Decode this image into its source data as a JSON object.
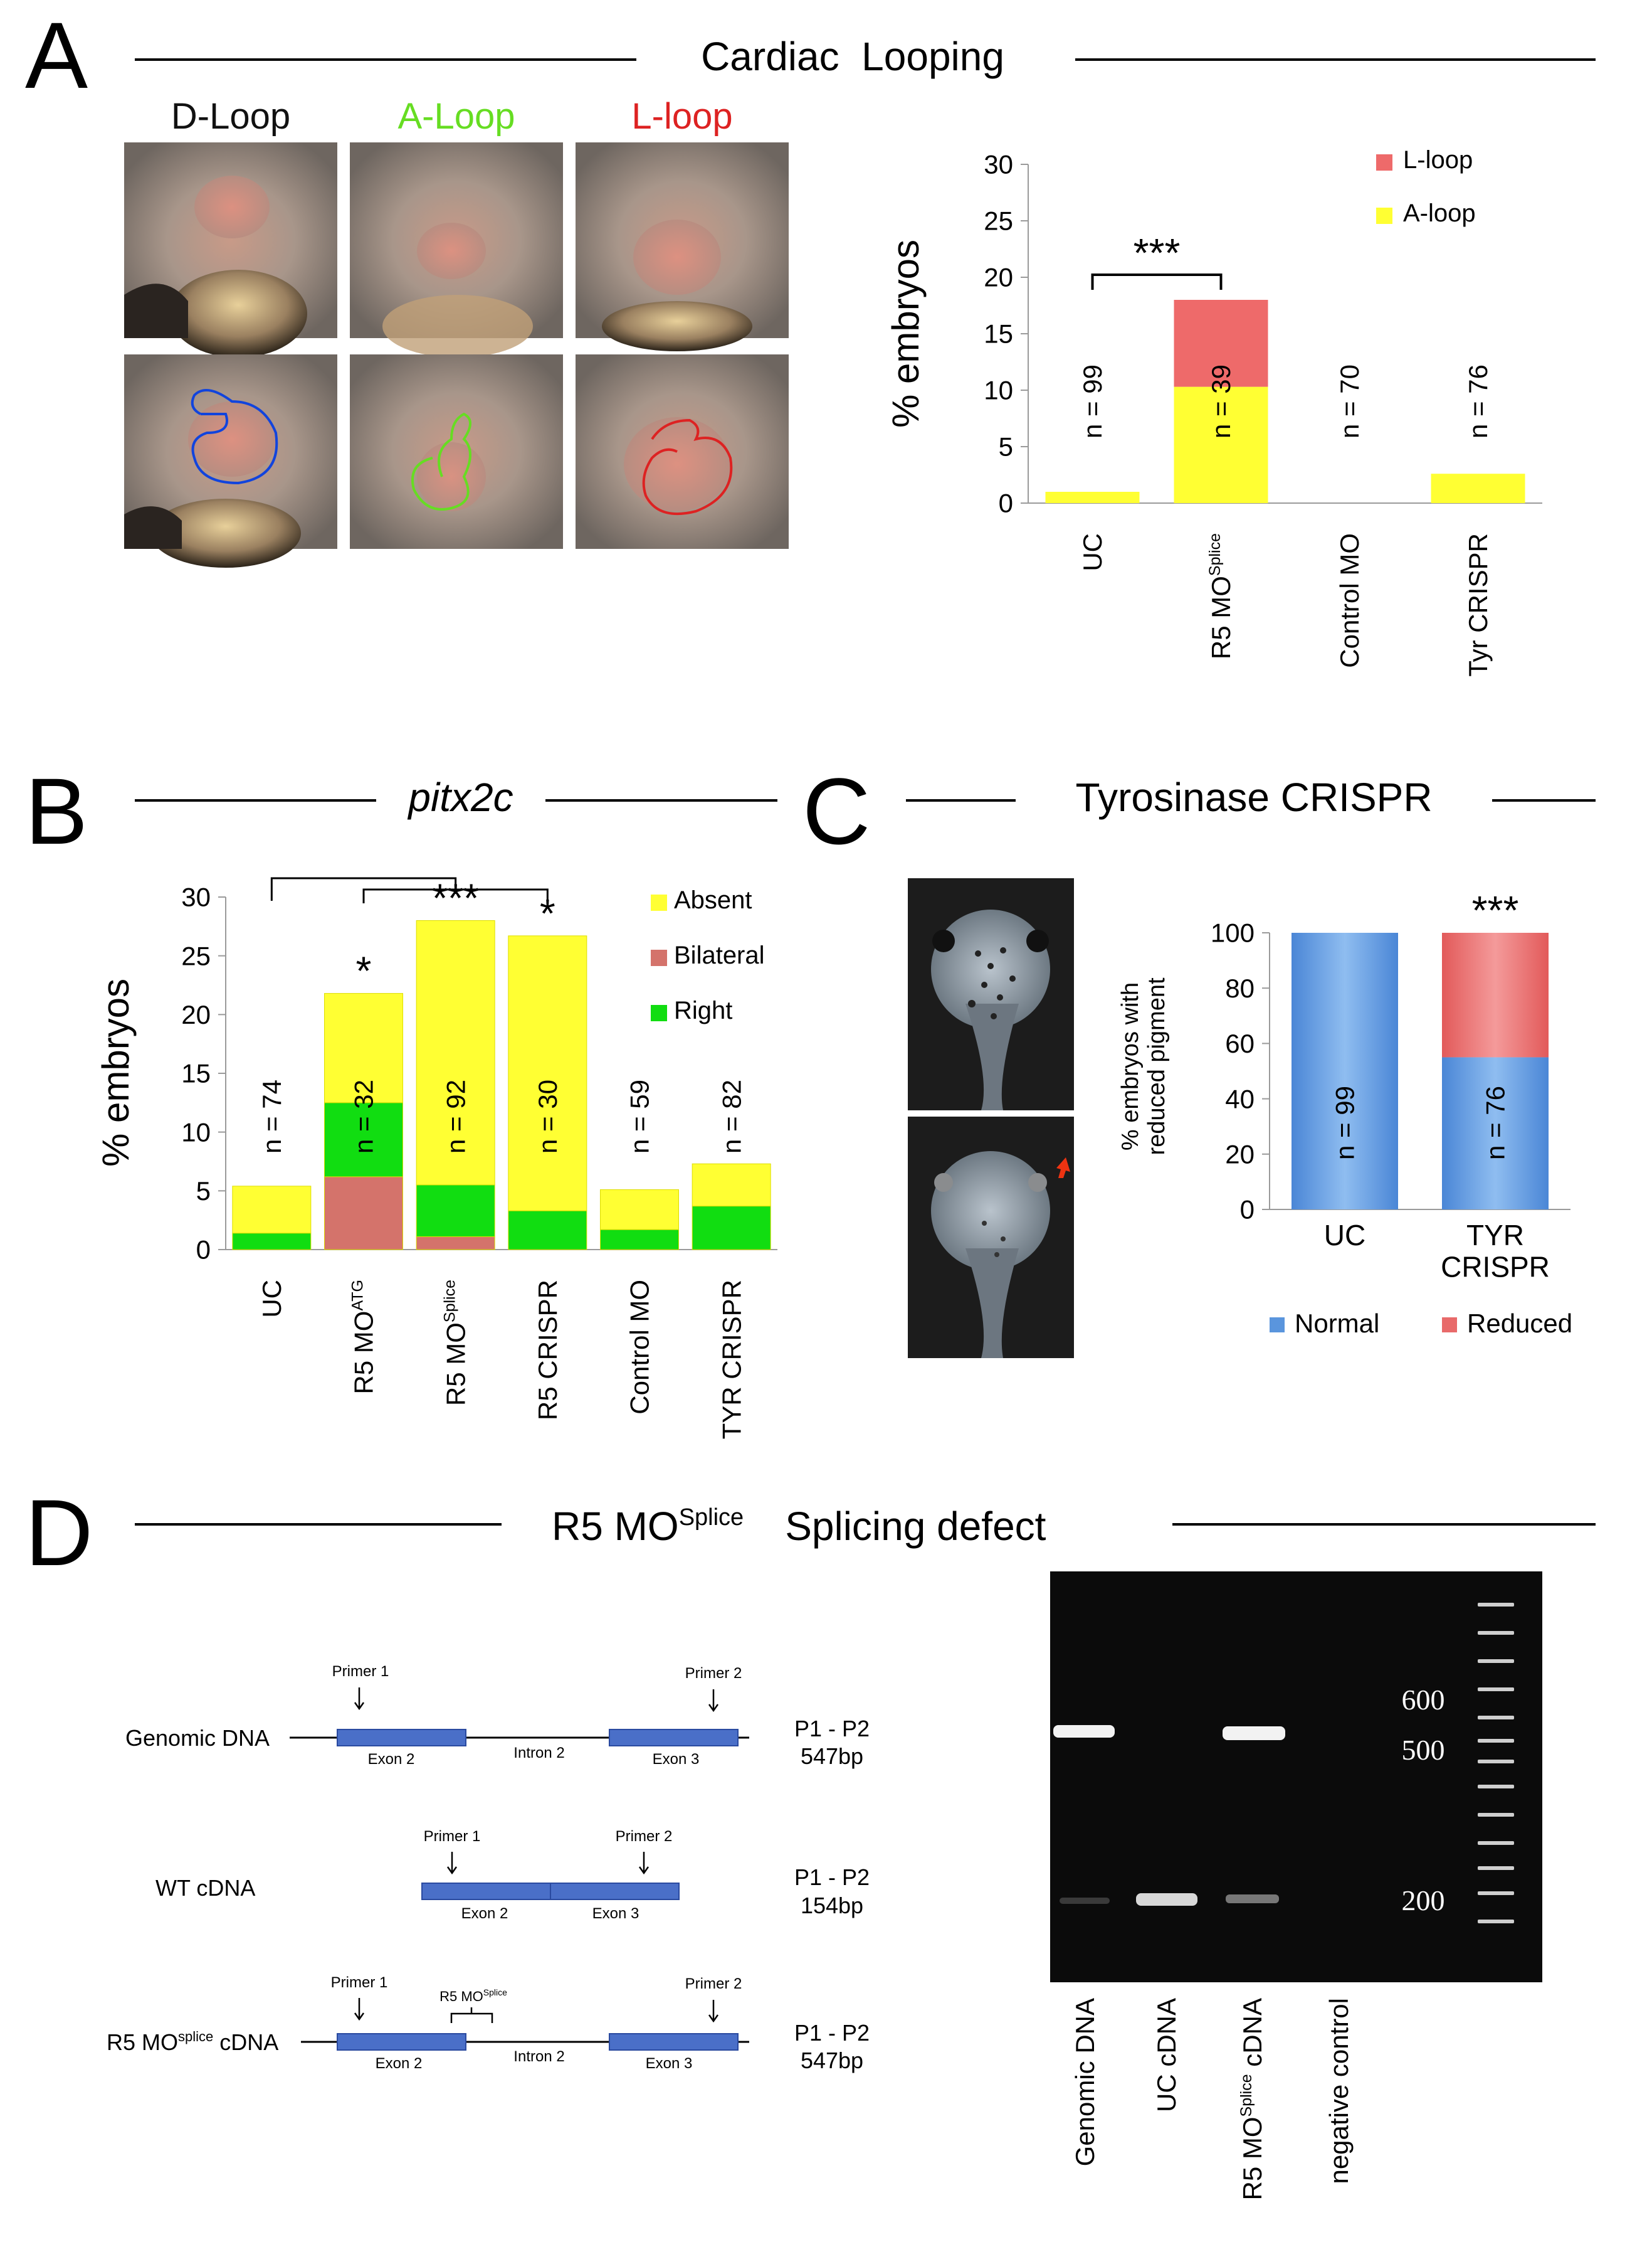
{
  "panels": {
    "A": {
      "letter": "A",
      "title": "Cardiac  Looping",
      "image_labels": [
        {
          "text": "D-Loop",
          "color": "#111111"
        },
        {
          "text": "A-Loop",
          "color": "#66dd22"
        },
        {
          "text": "L-loop",
          "color": "#dd2222"
        }
      ]
    },
    "B": {
      "letter": "B",
      "title": "pitx2c"
    },
    "C": {
      "letter": "C",
      "title": "Tyrosinase CRISPR"
    },
    "D": {
      "letter": "D",
      "title_main": "R5 MO",
      "title_sup": "Splice",
      "title_rest": "Splicing defect",
      "diagram": {
        "rows": [
          {
            "label": "Genomic DNA",
            "result": [
              "P1 - P2",
              "547bp"
            ],
            "primer1": "Primer 1",
            "primer2": "Primer 2",
            "exon_a": "Exon 2",
            "intron": "Intron 2",
            "exon_b": "Exon 3"
          },
          {
            "label": "WT cDNA",
            "result": [
              "P1 - P2",
              "154bp"
            ],
            "primer1": "Primer 1",
            "primer2": "Primer 2",
            "exon_a": "Exon 2",
            "exon_b": "Exon 3"
          },
          {
            "label_main": "R5 MO",
            "label_sup": "splice",
            "label_rest": " cDNA",
            "result": [
              "P1 - P2",
              "547bp"
            ],
            "primer1": "Primer 1",
            "primer2": "Primer 2",
            "mo_main": "R5 MO",
            "mo_sup": "Splice",
            "exon_a": "Exon 2",
            "intron": "Intron 2",
            "exon_b": "Exon 3"
          }
        ]
      },
      "gel": {
        "ladder_labels": [
          "600",
          "500",
          "200"
        ],
        "lanes": [
          {
            "main": "Genomic DNA",
            "sup": "",
            "rest": ""
          },
          {
            "main": "UC cDNA",
            "sup": "",
            "rest": ""
          },
          {
            "main": "R5 MO",
            "sup": "Splice",
            "rest": " cDNA"
          },
          {
            "main": "negative control",
            "sup": "",
            "rest": ""
          }
        ]
      }
    }
  },
  "chart_data": [
    {
      "panel": "A",
      "type": "bar",
      "stacked": true,
      "categories": [
        "UC",
        "R5 MO^Splice",
        "Control MO",
        "Tyr CRISPR"
      ],
      "category_labels": [
        {
          "main": "UC",
          "sup": ""
        },
        {
          "main": "R5 MO",
          "sup": "Splice"
        },
        {
          "main": "Control MO",
          "sup": ""
        },
        {
          "main": "Tyr CRISPR",
          "sup": ""
        }
      ],
      "series": [
        {
          "name": "A-loop",
          "color": "#ffff33",
          "values": [
            1.0,
            10.3,
            0.0,
            2.6
          ]
        },
        {
          "name": "L-loop",
          "color": "#ee6a6a",
          "values": [
            0.0,
            7.7,
            0.0,
            0.0
          ]
        }
      ],
      "n_labels": [
        "n = 99",
        "n = 39",
        "n = 70",
        "n = 76"
      ],
      "ylabel": "% embryos",
      "ylim": [
        0,
        30
      ],
      "yticks": [
        0,
        5,
        10,
        15,
        20,
        25,
        30
      ],
      "significance": [
        {
          "from": 0,
          "to": 1,
          "label": "***"
        }
      ],
      "legend": [
        "L-loop",
        "A-loop"
      ],
      "legend_position": "top-right"
    },
    {
      "panel": "B",
      "type": "bar",
      "stacked": true,
      "categories": [
        "UC",
        "R5 MO^ATG",
        "R5 MO^Splice",
        "R5 CRISPR",
        "Control MO",
        "TYR CRISPR"
      ],
      "category_labels": [
        {
          "main": "UC",
          "sup": ""
        },
        {
          "main": "R5 MO",
          "sup": "ATG"
        },
        {
          "main": "R5 MO",
          "sup": "Splice"
        },
        {
          "main": "R5 CRISPR",
          "sup": ""
        },
        {
          "main": "Control MO",
          "sup": ""
        },
        {
          "main": "TYR CRISPR",
          "sup": ""
        }
      ],
      "series": [
        {
          "name": "Bilateral",
          "color": "#d4736b",
          "values": [
            0.0,
            6.2,
            1.1,
            0.0,
            0.0,
            0.0
          ]
        },
        {
          "name": "Right",
          "color": "#11dd11",
          "values": [
            1.4,
            6.3,
            4.4,
            3.3,
            1.7,
            3.7
          ]
        },
        {
          "name": "Absent",
          "color": "#ffff33",
          "values": [
            4.0,
            9.3,
            22.5,
            23.4,
            3.4,
            3.6
          ]
        }
      ],
      "n_labels": [
        "n = 74",
        "n = 32",
        "n = 92",
        "n = 30",
        "n = 59",
        "n = 82"
      ],
      "ylabel": "% embryos",
      "ylim": [
        0,
        30
      ],
      "yticks": [
        0,
        5,
        10,
        15,
        20,
        25,
        30
      ],
      "stars": [
        "",
        "*",
        "***",
        "*",
        "",
        ""
      ],
      "legend": [
        "Absent",
        "Bilateral",
        "Right"
      ],
      "legend_position": "top-right"
    },
    {
      "panel": "C",
      "type": "bar",
      "stacked": true,
      "categories": [
        "UC",
        "TYR CRISPR"
      ],
      "category_labels": [
        {
          "main": "UC",
          "sup": ""
        },
        {
          "main": "TYR CRISPR",
          "sup": ""
        }
      ],
      "series": [
        {
          "name": "Normal",
          "color": "#5a95dd",
          "values": [
            100,
            55
          ]
        },
        {
          "name": "Reduced",
          "color": "#e86a6a",
          "values": [
            0,
            45
          ]
        }
      ],
      "n_labels": [
        "n = 99",
        "n = 76"
      ],
      "ylabel": "% embryos with reduced pigment",
      "ylabel_lines": [
        "% embryos with",
        "reduced pigment"
      ],
      "ylim": [
        0,
        100
      ],
      "yticks": [
        0,
        20,
        40,
        60,
        80,
        100
      ],
      "stars": [
        "",
        "***"
      ],
      "legend": [
        "Normal",
        "Reduced"
      ],
      "legend_position": "bottom"
    }
  ]
}
